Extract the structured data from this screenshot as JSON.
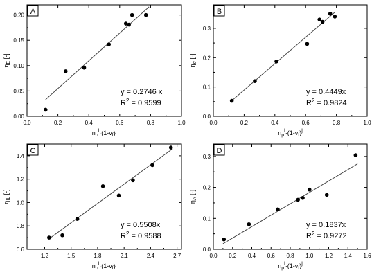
{
  "chart_data": [
    {
      "type": "scatter",
      "panel_label": "A",
      "ylabel_base": "η",
      "ylabel_sub": "E",
      "ylabel_unit": " [-]",
      "xlabel_base": "n",
      "xlabel_sub": "p",
      "xlabel_sup1": "i",
      "xlabel_mid": "·(1-v",
      "xlabel_sub2": "f",
      "xlabel_end": ")",
      "xlabel_sup2": "j",
      "xlim": [
        0.0,
        1.0
      ],
      "ylim": [
        0.0,
        0.22
      ],
      "xticks": [
        0.0,
        0.2,
        0.4,
        0.6,
        0.8,
        1.0
      ],
      "xtick_labels": [
        "0.0",
        "0.2",
        "0.4",
        "0.6",
        "0.8",
        "1.0"
      ],
      "yticks": [
        0.0,
        0.05,
        0.1,
        0.15,
        0.2
      ],
      "ytick_labels": [
        "0.00",
        "0.05",
        "0.10",
        "0.15",
        "0.20"
      ],
      "points": [
        {
          "x": 0.12,
          "y": 0.013
        },
        {
          "x": 0.25,
          "y": 0.089
        },
        {
          "x": 0.37,
          "y": 0.096
        },
        {
          "x": 0.53,
          "y": 0.142
        },
        {
          "x": 0.64,
          "y": 0.183
        },
        {
          "x": 0.66,
          "y": 0.181
        },
        {
          "x": 0.68,
          "y": 0.2
        },
        {
          "x": 0.77,
          "y": 0.2
        }
      ],
      "fit_line": {
        "x1": 0.12,
        "y1": 0.033,
        "x2": 0.79,
        "y2": 0.216
      },
      "equation": "y = 0.2746 x",
      "r2_base": "R",
      "r2_sup": "2",
      "r2_value": " = 0.9599"
    },
    {
      "type": "scatter",
      "panel_label": "B",
      "ylabel_base": "η",
      "ylabel_sub": "σ",
      "ylabel_unit": " [-]",
      "xlabel_base": "n",
      "xlabel_sub": "p",
      "xlabel_sup1": "i",
      "xlabel_mid": "·(1-v",
      "xlabel_sub2": "f",
      "xlabel_end": ")",
      "xlabel_sup2": "j",
      "xlim": [
        0.0,
        1.0
      ],
      "ylim": [
        0.0,
        0.38
      ],
      "xticks": [
        0.0,
        0.2,
        0.4,
        0.6,
        0.8,
        1.0
      ],
      "xtick_labels": [
        "0.0",
        "0.2",
        "0.4",
        "0.6",
        "0.8",
        "1.0"
      ],
      "yticks": [
        0.0,
        0.1,
        0.2,
        0.3
      ],
      "ytick_labels": [
        "0.0",
        "0.1",
        "0.2",
        "0.3"
      ],
      "points": [
        {
          "x": 0.12,
          "y": 0.053
        },
        {
          "x": 0.27,
          "y": 0.12
        },
        {
          "x": 0.41,
          "y": 0.187
        },
        {
          "x": 0.61,
          "y": 0.247
        },
        {
          "x": 0.69,
          "y": 0.33
        },
        {
          "x": 0.71,
          "y": 0.322
        },
        {
          "x": 0.76,
          "y": 0.35
        },
        {
          "x": 0.79,
          "y": 0.34
        }
      ],
      "fit_line": {
        "x1": 0.11,
        "y1": 0.049,
        "x2": 0.79,
        "y2": 0.355
      },
      "equation": "y = 0.4449x",
      "r2_base": "R",
      "r2_sup": "2",
      "r2_value": " = 0.9824"
    },
    {
      "type": "scatter",
      "panel_label": "C",
      "ylabel_base": "η",
      "ylabel_sub": "IL",
      "ylabel_unit": " [-]",
      "xlabel_base": "n",
      "xlabel_sub": "p",
      "xlabel_sup1": "i",
      "xlabel_mid": "·(1-v",
      "xlabel_sub2": "f",
      "xlabel_end": ")",
      "xlabel_sup2": "j",
      "xlim": [
        1.0,
        2.75
      ],
      "ylim": [
        0.6,
        1.5
      ],
      "xticks": [
        1.2,
        1.5,
        1.8,
        2.1,
        2.4,
        2.7
      ],
      "xtick_labels": [
        "1.2",
        "1.5",
        "1.8",
        "2.1",
        "2.4",
        "2.7"
      ],
      "yticks": [
        0.6,
        0.8,
        1.0,
        1.2,
        1.4
      ],
      "ytick_labels": [
        "0.6",
        "0.8",
        "1.0",
        "1.2",
        "1.4"
      ],
      "points": [
        {
          "x": 1.25,
          "y": 0.7
        },
        {
          "x": 1.4,
          "y": 0.72
        },
        {
          "x": 1.57,
          "y": 0.86
        },
        {
          "x": 1.86,
          "y": 1.14
        },
        {
          "x": 2.04,
          "y": 1.06
        },
        {
          "x": 2.2,
          "y": 1.19
        },
        {
          "x": 2.42,
          "y": 1.32
        },
        {
          "x": 2.63,
          "y": 1.47
        }
      ],
      "fit_line": {
        "x1": 1.25,
        "y1": 0.69,
        "x2": 2.65,
        "y2": 1.46
      },
      "equation": "y = 0.5508x",
      "r2_base": "R",
      "r2_sup": "2",
      "r2_value": " = 0.9588"
    },
    {
      "type": "scatter",
      "panel_label": "D",
      "ylabel_base": "η",
      "ylabel_sub": "A",
      "ylabel_unit": " [-]",
      "xlabel_base": "n",
      "xlabel_sub": "p",
      "xlabel_sup1": "i",
      "xlabel_mid": "·(1-v",
      "xlabel_sub2": "f",
      "xlabel_end": ")",
      "xlabel_sup2": "j",
      "xlim": [
        0.0,
        1.6
      ],
      "ylim": [
        0.0,
        0.34
      ],
      "xticks": [
        0.0,
        0.2,
        0.4,
        0.6,
        0.8,
        1.0,
        1.2,
        1.4,
        1.6
      ],
      "xtick_labels": [
        "0.0",
        "0.2",
        "0.4",
        "0.6",
        "0.8",
        "1.0",
        "1.2",
        "1.4",
        "1.6"
      ],
      "yticks": [
        0.0,
        0.1,
        0.2,
        0.3
      ],
      "ytick_labels": [
        "0.0",
        "0.1",
        "0.2",
        "0.3"
      ],
      "points": [
        {
          "x": 0.11,
          "y": 0.032
        },
        {
          "x": 0.37,
          "y": 0.081
        },
        {
          "x": 0.67,
          "y": 0.129
        },
        {
          "x": 0.88,
          "y": 0.16
        },
        {
          "x": 0.93,
          "y": 0.166
        },
        {
          "x": 1.0,
          "y": 0.193
        },
        {
          "x": 1.18,
          "y": 0.176
        },
        {
          "x": 1.48,
          "y": 0.304
        }
      ],
      "fit_line": {
        "x1": 0.1,
        "y1": 0.018,
        "x2": 1.5,
        "y2": 0.276
      },
      "equation": "y = 0.1837x",
      "r2_base": "R",
      "r2_sup": "2",
      "r2_value": " = 0.9272"
    }
  ]
}
